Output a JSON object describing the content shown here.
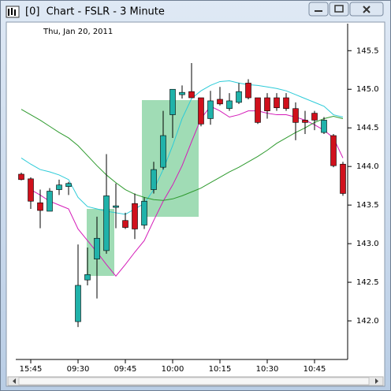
{
  "window": {
    "title": "[0]  Chart - FSLR - 3 Minute"
  },
  "chart_data": {
    "type": "candlestick",
    "subtitle": "Thu, Jan 20, 2011",
    "categories": [
      null,
      "15:45",
      null,
      null,
      null,
      null,
      "09:30",
      null,
      null,
      null,
      null,
      "09:45",
      null,
      null,
      null,
      null,
      "10:00",
      null,
      null,
      null,
      null,
      "10:15",
      null,
      null,
      null,
      null,
      "10:30",
      null,
      null,
      null,
      null,
      "10:45",
      null,
      null,
      null
    ],
    "open": [
      143.9,
      143.84,
      143.53,
      143.42,
      143.7,
      143.74,
      141.99,
      142.53,
      142.8,
      142.91,
      143.47,
      143.3,
      143.52,
      143.24,
      143.7,
      143.99,
      144.67,
      144.93,
      144.97,
      144.89,
      144.62,
      144.87,
      144.75,
      144.83,
      145.08,
      144.89,
      144.89,
      144.89,
      144.89,
      144.75,
      144.6,
      144.69,
      144.44,
      144.4,
      144.03
    ],
    "high": [
      143.92,
      143.86,
      143.7,
      143.72,
      143.83,
      143.8,
      142.99,
      142.95,
      143.35,
      144.16,
      143.78,
      143.4,
      143.65,
      143.6,
      144.06,
      144.72,
      145.0,
      145.05,
      145.34,
      144.89,
      144.98,
      145.03,
      144.95,
      145.08,
      145.13,
      144.89,
      144.95,
      144.95,
      144.95,
      144.83,
      144.72,
      144.72,
      144.64,
      144.42,
      144.06
    ],
    "low": [
      143.82,
      143.45,
      143.2,
      143.42,
      143.63,
      143.63,
      141.92,
      142.46,
      142.29,
      142.87,
      143.2,
      143.19,
      143.06,
      143.19,
      143.65,
      143.96,
      144.37,
      144.88,
      144.89,
      144.52,
      144.54,
      144.79,
      144.72,
      144.81,
      144.87,
      144.55,
      144.62,
      144.72,
      144.72,
      144.34,
      144.42,
      144.47,
      144.42,
      143.99,
      143.62
    ],
    "close": [
      143.83,
      143.55,
      143.43,
      143.68,
      143.76,
      143.78,
      142.46,
      142.6,
      143.07,
      143.62,
      143.49,
      143.21,
      143.19,
      143.55,
      143.96,
      144.4,
      145.0,
      144.96,
      144.89,
      144.55,
      144.85,
      144.81,
      144.85,
      144.97,
      144.89,
      144.57,
      144.72,
      144.76,
      144.75,
      144.57,
      144.57,
      144.6,
      144.6,
      144.01,
      143.65
    ],
    "up_color": "#20b2aa",
    "down_color": "#d0101c",
    "lines": [
      {
        "color": "#2ccbd8",
        "values": [
          144.11,
          144.03,
          143.96,
          143.93,
          143.89,
          143.83,
          143.6,
          143.48,
          143.45,
          143.42,
          143.4,
          143.38,
          143.45,
          143.52,
          143.7,
          143.96,
          144.27,
          144.62,
          144.88,
          144.98,
          145.05,
          145.1,
          145.11,
          145.08,
          145.06,
          145.05,
          145.03,
          145.01,
          144.98,
          144.93,
          144.88,
          144.83,
          144.78,
          144.67,
          144.64
        ]
      },
      {
        "color": "#d41bb8",
        "values": [
          null,
          143.7,
          143.63,
          143.55,
          143.5,
          143.45,
          143.19,
          143.04,
          142.89,
          142.73,
          142.58,
          142.73,
          142.89,
          143.04,
          143.3,
          143.55,
          143.76,
          144.01,
          144.32,
          144.62,
          144.78,
          144.72,
          144.64,
          144.67,
          144.72,
          144.72,
          144.69,
          144.67,
          144.67,
          144.64,
          144.6,
          144.54,
          144.47,
          144.37,
          144.11
        ]
      },
      {
        "color": "#2e9a2e",
        "values": [
          144.74,
          144.67,
          144.6,
          144.52,
          144.44,
          144.37,
          144.27,
          144.14,
          144.01,
          143.89,
          143.79,
          143.7,
          143.64,
          143.6,
          143.57,
          143.56,
          143.58,
          143.62,
          143.67,
          143.72,
          143.79,
          143.86,
          143.93,
          143.99,
          144.06,
          144.13,
          144.21,
          144.3,
          144.37,
          144.44,
          144.5,
          144.57,
          144.62,
          144.65,
          144.62
        ]
      }
    ],
    "ylim": [
      141.5,
      145.85
    ],
    "yticks": [
      {
        "value": 142,
        "label": "142.0"
      },
      142.5,
      {
        "value": 143,
        "label": "143.0"
      },
      143.5,
      {
        "value": 144,
        "label": "144.0"
      },
      144.5,
      {
        "value": 145,
        "label": "145.0"
      },
      145.5
    ]
  }
}
